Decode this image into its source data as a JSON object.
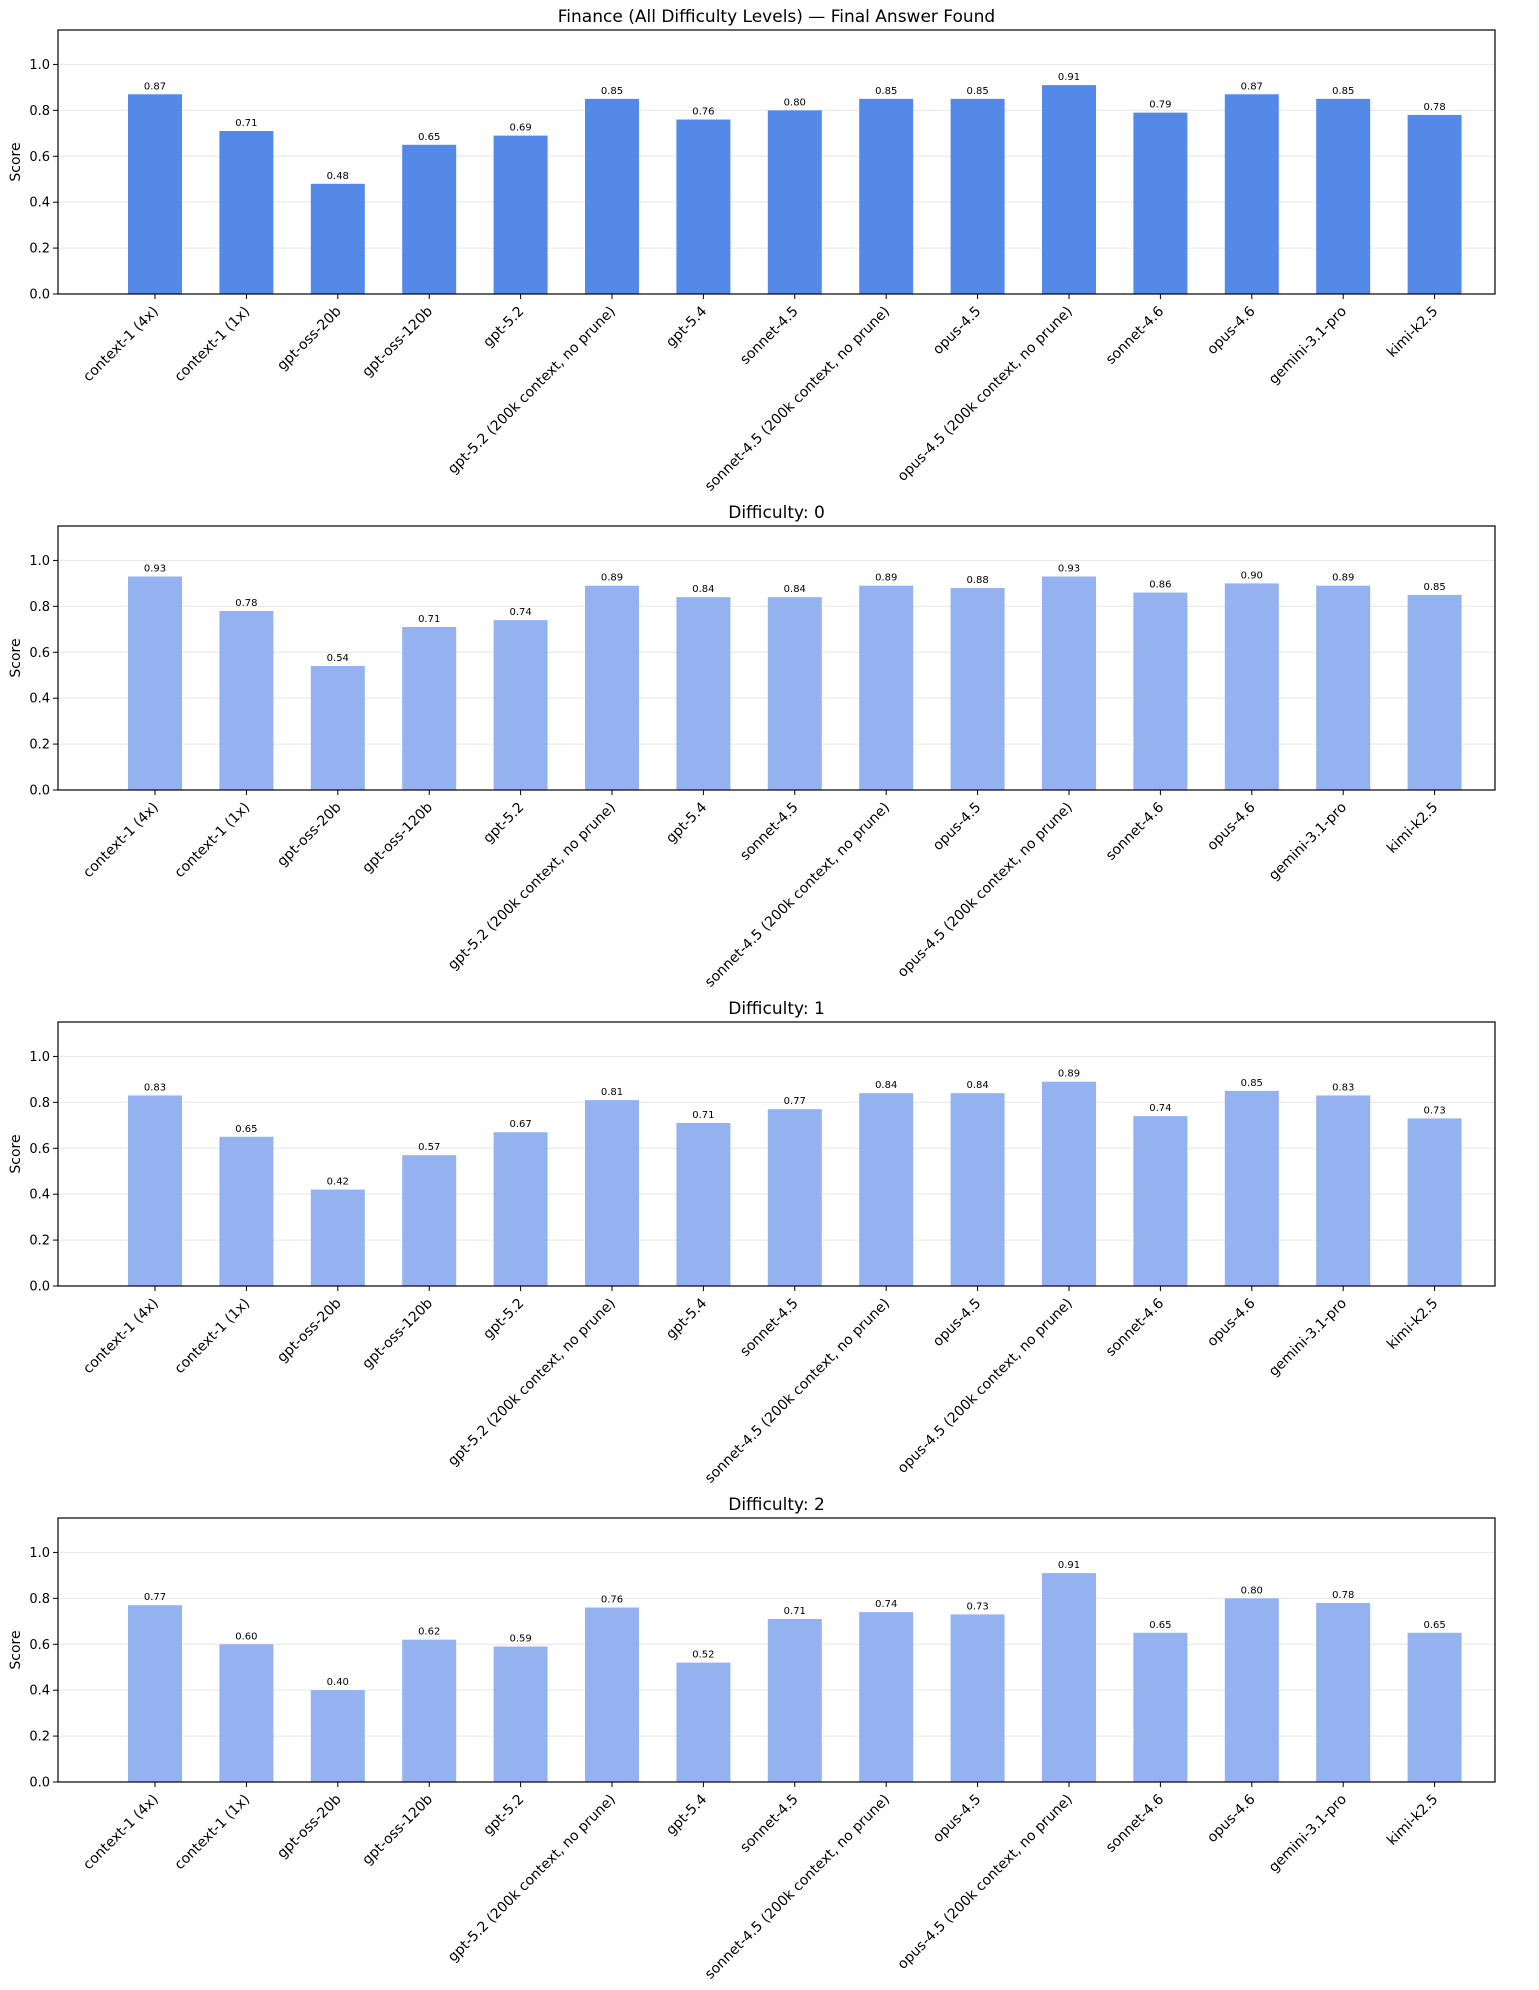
{
  "colors": {
    "bar_primary": "#5589e7",
    "bar_secondary": "#93b2ef",
    "grid": "#e6e6e6",
    "axis": "#000000"
  },
  "chart_data": [
    {
      "type": "bar",
      "title": "Finance (All Difficulty Levels) — Final Answer Found",
      "xlabel": "",
      "ylabel": "Score",
      "ylim": [
        0,
        1.15
      ],
      "yticks": [
        "0.0",
        "0.2",
        "0.4",
        "0.6",
        "0.8",
        "1.0"
      ],
      "grid": "horizontal",
      "bar_color": "#5589e7",
      "categories": [
        "context-1 (4x)",
        "context-1 (1x)",
        "gpt-oss-20b",
        "gpt-oss-120b",
        "gpt-5.2",
        "gpt-5.2 (200k context, no prune)",
        "gpt-5.4",
        "sonnet-4.5",
        "sonnet-4.5 (200k context, no prune)",
        "opus-4.5",
        "opus-4.5 (200k context, no prune)",
        "sonnet-4.6",
        "opus-4.6",
        "gemini-3.1-pro",
        "kimi-k2.5"
      ],
      "values": [
        0.87,
        0.71,
        0.48,
        0.65,
        0.69,
        0.85,
        0.76,
        0.8,
        0.85,
        0.85,
        0.91,
        0.79,
        0.87,
        0.85,
        0.78
      ],
      "labels": [
        "0.87",
        "0.71",
        "0.48",
        "0.65",
        "0.69",
        "0.85",
        "0.76",
        "0.80",
        "0.85",
        "0.85",
        "0.91",
        "0.79",
        "0.87",
        "0.85",
        "0.78"
      ]
    },
    {
      "type": "bar",
      "title": "Difficulty: 0",
      "xlabel": "",
      "ylabel": "Score",
      "ylim": [
        0,
        1.15
      ],
      "yticks": [
        "0.0",
        "0.2",
        "0.4",
        "0.6",
        "0.8",
        "1.0"
      ],
      "grid": "horizontal",
      "bar_color": "#93b2ef",
      "categories": [
        "context-1 (4x)",
        "context-1 (1x)",
        "gpt-oss-20b",
        "gpt-oss-120b",
        "gpt-5.2",
        "gpt-5.2 (200k context, no prune)",
        "gpt-5.4",
        "sonnet-4.5",
        "sonnet-4.5 (200k context, no prune)",
        "opus-4.5",
        "opus-4.5 (200k context, no prune)",
        "sonnet-4.6",
        "opus-4.6",
        "gemini-3.1-pro",
        "kimi-k2.5"
      ],
      "values": [
        0.93,
        0.78,
        0.54,
        0.71,
        0.74,
        0.89,
        0.84,
        0.84,
        0.89,
        0.88,
        0.93,
        0.86,
        0.9,
        0.89,
        0.85
      ],
      "labels": [
        "0.93",
        "0.78",
        "0.54",
        "0.71",
        "0.74",
        "0.89",
        "0.84",
        "0.84",
        "0.89",
        "0.88",
        "0.93",
        "0.86",
        "0.90",
        "0.89",
        "0.85"
      ]
    },
    {
      "type": "bar",
      "title": "Difficulty: 1",
      "xlabel": "",
      "ylabel": "Score",
      "ylim": [
        0,
        1.15
      ],
      "yticks": [
        "0.0",
        "0.2",
        "0.4",
        "0.6",
        "0.8",
        "1.0"
      ],
      "grid": "horizontal",
      "bar_color": "#93b2ef",
      "categories": [
        "context-1 (4x)",
        "context-1 (1x)",
        "gpt-oss-20b",
        "gpt-oss-120b",
        "gpt-5.2",
        "gpt-5.2 (200k context, no prune)",
        "gpt-5.4",
        "sonnet-4.5",
        "sonnet-4.5 (200k context, no prune)",
        "opus-4.5",
        "opus-4.5 (200k context, no prune)",
        "sonnet-4.6",
        "opus-4.6",
        "gemini-3.1-pro",
        "kimi-k2.5"
      ],
      "values": [
        0.83,
        0.65,
        0.42,
        0.57,
        0.67,
        0.81,
        0.71,
        0.77,
        0.84,
        0.84,
        0.89,
        0.74,
        0.85,
        0.83,
        0.73
      ],
      "labels": [
        "0.83",
        "0.65",
        "0.42",
        "0.57",
        "0.67",
        "0.81",
        "0.71",
        "0.77",
        "0.84",
        "0.84",
        "0.89",
        "0.74",
        "0.85",
        "0.83",
        "0.73"
      ]
    },
    {
      "type": "bar",
      "title": "Difficulty: 2",
      "xlabel": "",
      "ylabel": "Score",
      "ylim": [
        0,
        1.15
      ],
      "yticks": [
        "0.0",
        "0.2",
        "0.4",
        "0.6",
        "0.8",
        "1.0"
      ],
      "grid": "horizontal",
      "bar_color": "#93b2ef",
      "categories": [
        "context-1 (4x)",
        "context-1 (1x)",
        "gpt-oss-20b",
        "gpt-oss-120b",
        "gpt-5.2",
        "gpt-5.2 (200k context, no prune)",
        "gpt-5.4",
        "sonnet-4.5",
        "sonnet-4.5 (200k context, no prune)",
        "opus-4.5",
        "opus-4.5 (200k context, no prune)",
        "sonnet-4.6",
        "opus-4.6",
        "gemini-3.1-pro",
        "kimi-k2.5"
      ],
      "values": [
        0.77,
        0.6,
        0.4,
        0.62,
        0.59,
        0.76,
        0.52,
        0.71,
        0.74,
        0.73,
        0.91,
        0.65,
        0.8,
        0.78,
        0.65
      ],
      "labels": [
        "0.77",
        "0.60",
        "0.40",
        "0.62",
        "0.59",
        "0.76",
        "0.52",
        "0.71",
        "0.74",
        "0.73",
        "0.91",
        "0.65",
        "0.80",
        "0.78",
        "0.65"
      ]
    }
  ]
}
